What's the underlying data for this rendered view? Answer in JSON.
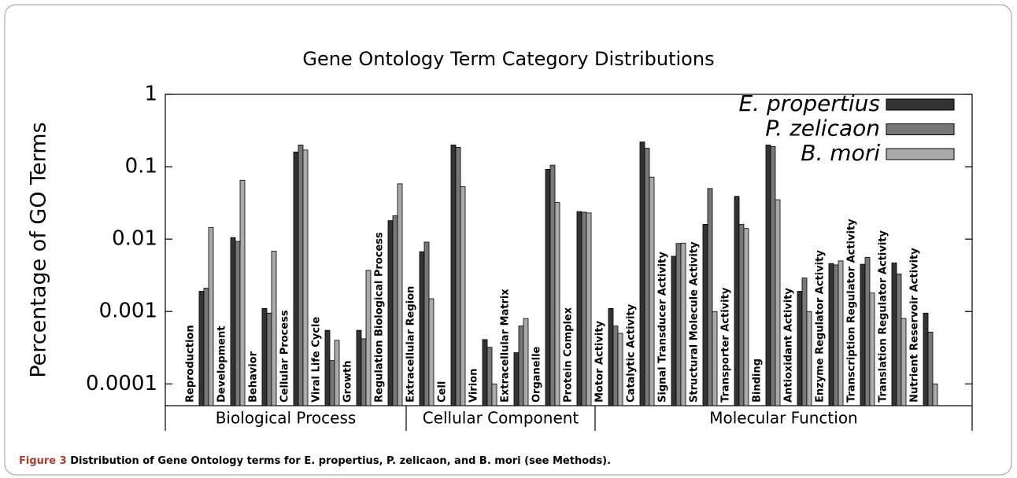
{
  "chart_data": {
    "type": "bar",
    "log_scale": true,
    "grid": false,
    "legend": "top-right",
    "title": "Gene Ontology Term Category Distributions",
    "ylabel": "Percentage of GO Terms",
    "groups": [
      {
        "name": "Biological Process",
        "categories": [
          "Reproduction",
          "Development",
          "Behavior",
          "Cellular Process",
          "Viral Life Cycle",
          "Growth",
          "Regulation Biological Process"
        ]
      },
      {
        "name": "Cellular Component",
        "categories": [
          "Extracellular Region",
          "Cell",
          "Virion",
          "Extracellular Matrix",
          "Organelle",
          "Protein Complex"
        ]
      },
      {
        "name": "Molecular Function",
        "categories": [
          "Motor Activity",
          "Catalytic Activity",
          "Signal Transducer Activity",
          "Structural Molecule Activity",
          "Transporter Activity",
          "Binding",
          "Antioxidant Activity",
          "Enzyme Regulator Activity",
          "Transcription Regulator Activity",
          "Translation Regulator Activity",
          "Nutrient Reservoir Activity"
        ]
      }
    ],
    "series": [
      {
        "name": "E. propertius",
        "color": "#333333",
        "values": [
          0.0019,
          0.0105,
          0.0011,
          0.16,
          0.00055,
          0.00055,
          0.018,
          0.0067,
          0.2,
          0.00041,
          0.00027,
          0.092,
          0.024,
          0.0011,
          0.22,
          0.0058,
          0.016,
          0.039,
          0.2,
          0.0019,
          0.0046,
          0.0045,
          0.0047,
          0.00095
        ]
      },
      {
        "name": "P. zelicaon",
        "color": "#777777",
        "values": [
          0.0021,
          0.0093,
          0.00095,
          0.2,
          0.00021,
          0.00042,
          0.021,
          0.0091,
          0.185,
          0.00032,
          0.00063,
          0.105,
          0.0235,
          0.00063,
          0.18,
          0.0087,
          0.05,
          0.016,
          0.19,
          0.0029,
          0.0044,
          0.0056,
          0.0033,
          0.00052
        ]
      },
      {
        "name": "B. mori",
        "color": "#aaaaaa",
        "values": [
          0.0145,
          0.065,
          0.0068,
          0.17,
          0.0004,
          0.0037,
          0.058,
          0.0015,
          0.053,
          0.0001,
          0.0008,
          0.032,
          0.023,
          0.0005,
          0.072,
          0.0088,
          0.001,
          0.014,
          0.035,
          0.001,
          0.005,
          0.0018,
          0.0008,
          0.0001
        ]
      }
    ],
    "ylim": [
      5e-05,
      1
    ],
    "yticks": [
      1,
      0.1,
      0.01,
      0.001,
      0.0001
    ],
    "caption": {
      "label": "Figure 3",
      "text": "Distribution of Gene Ontology terms for E. propertius, P. zelicaon, and B. mori (see Methods)."
    }
  }
}
